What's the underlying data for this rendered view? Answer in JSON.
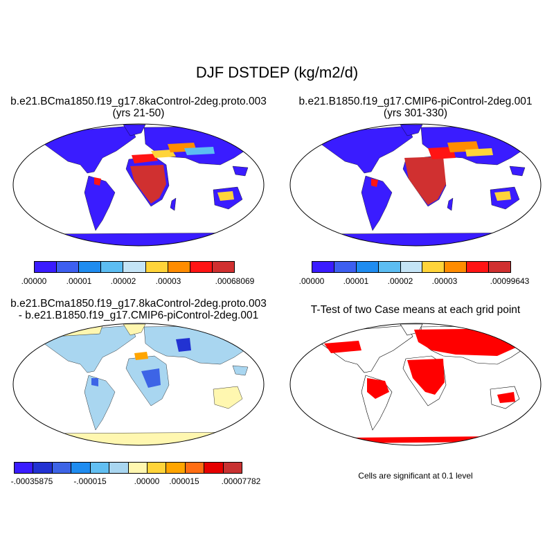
{
  "figure": {
    "title": "DJF DSTDEP (kg/m2/d)"
  },
  "panels": [
    {
      "id": "case",
      "title_line1": "b.e21.BCma1850.f19_g17.8kaControl-2deg.proto.003",
      "title_line2": "(yrs 21-50)",
      "colorbar": {
        "colors": [
          "#3a1cff",
          "#3d5ff0",
          "#1f8cf0",
          "#5cbdf2",
          "#c4e4f6",
          "#ffd43a",
          "#ff8c00",
          "#ff1414",
          "#d03030"
        ],
        "labels": [
          ".00000",
          ".00001",
          ".00002",
          ".00003",
          ".00068069"
        ]
      }
    },
    {
      "id": "control",
      "title_line1": "b.e21.B1850.f19_g17.CMIP6-piControl-2deg.001",
      "title_line2": "(yrs 301-330)",
      "colorbar": {
        "colors": [
          "#3a1cff",
          "#3d5ff0",
          "#1f8cf0",
          "#5cbdf2",
          "#c4e4f6",
          "#ffd43a",
          "#ff8c00",
          "#ff1414",
          "#d03030"
        ],
        "labels": [
          ".00000",
          ".00001",
          ".00002",
          ".00003",
          ".00099643"
        ]
      }
    },
    {
      "id": "difference",
      "title_line1": "b.e21.BCma1850.f19_g17.8kaControl-2deg.proto.003",
      "title_line2": "- b.e21.B1850.f19_g17.CMIP6-piControl-2deg.001",
      "colorbar": {
        "colors": [
          "#3a1cff",
          "#2232d2",
          "#3d64e6",
          "#1f8cf0",
          "#62bff2",
          "#a9d6f0",
          "#fff7b0",
          "#ffd43a",
          "#ffa500",
          "#ff6e14",
          "#e60000",
          "#c83232"
        ],
        "labels": [
          "-.00035875",
          "-.000015",
          ".00000",
          ".000015",
          ".00007782"
        ]
      }
    },
    {
      "id": "ttest",
      "title_line1": "T-Test of two Case means at each grid point",
      "note": "Cells are significant at 0.1 level"
    }
  ],
  "map_colors": {
    "ocean": "#ffffff",
    "low_deposition": "#3a1cff",
    "diff_base": "#a9d6f0",
    "diff_positive": "#fff7b0",
    "significant": "#ff0000",
    "coastline": "#000000"
  }
}
